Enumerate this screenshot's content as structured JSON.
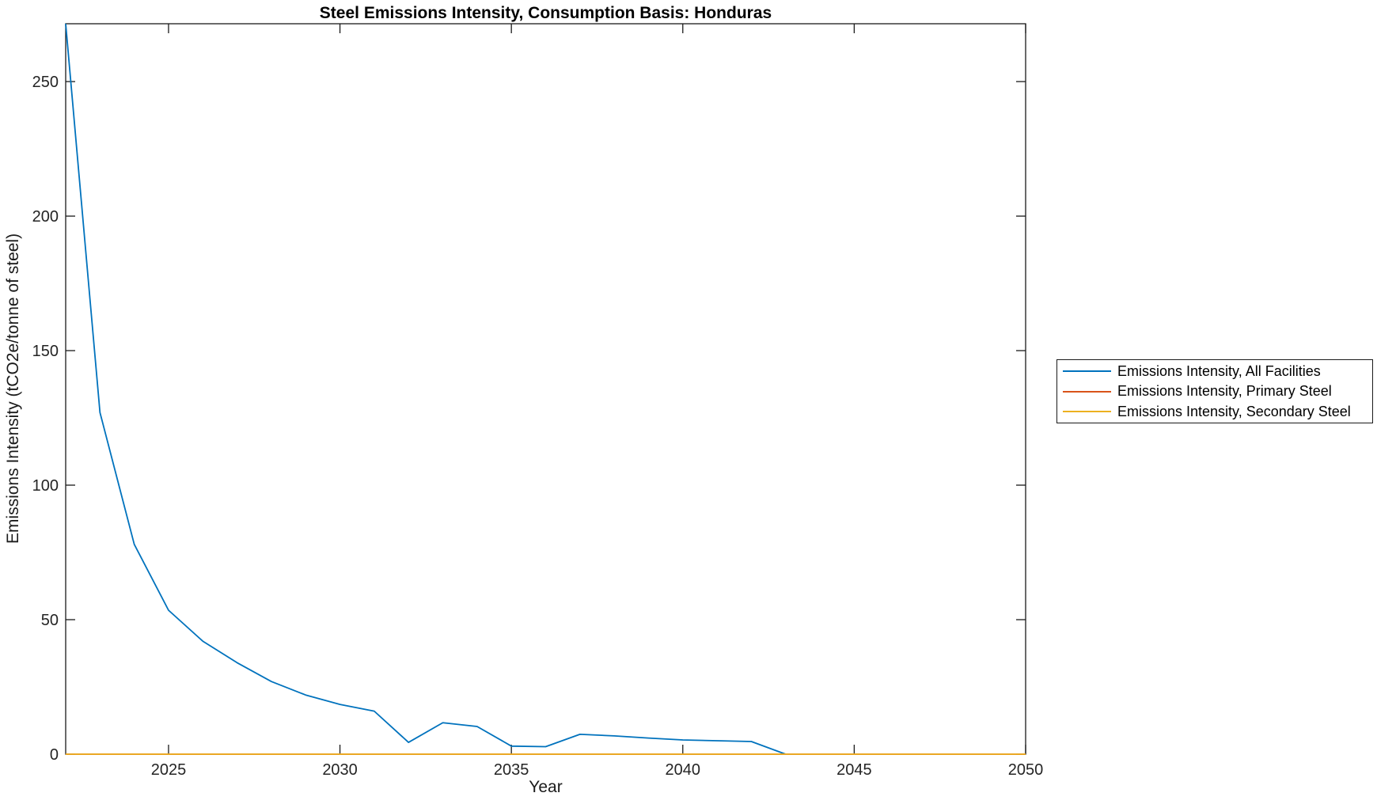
{
  "figure": {
    "title": "Steel Emissions Intensity, Consumption Basis: Honduras",
    "xlabel": "Year",
    "ylabel": "Emissions Intensity (tCO2e/tonne of steel)"
  },
  "chart_data": {
    "type": "line",
    "title": "Steel Emissions Intensity, Consumption Basis: Honduras",
    "xlabel": "Year",
    "ylabel": "Emissions Intensity (tCO2e/tonne of steel)",
    "xlim": [
      2022,
      2050
    ],
    "ylim": [
      0,
      271.5
    ],
    "x_ticks": [
      2025,
      2030,
      2035,
      2040,
      2045,
      2050
    ],
    "y_ticks": [
      0,
      50,
      100,
      150,
      200,
      250
    ],
    "grid": false,
    "box": true,
    "tick_direction": "in",
    "legend_position": "outside-right",
    "axis_color": "#1a1a1a",
    "series": [
      {
        "name": "Emissions Intensity, All Facilities",
        "color": "#0072BD",
        "x": [
          2022,
          2023,
          2024,
          2025,
          2026,
          2027,
          2028,
          2029,
          2030,
          2031,
          2032,
          2033,
          2034,
          2035,
          2036,
          2037,
          2038,
          2039,
          2040,
          2041,
          2042,
          2043
        ],
        "y": [
          271.5,
          127,
          78,
          53.5,
          42,
          34,
          27,
          22,
          18.5,
          16,
          4.4,
          11.7,
          10.3,
          3.0,
          2.8,
          7.4,
          6.8,
          6.0,
          5.3,
          5.0,
          4.7,
          0
        ]
      },
      {
        "name": "Emissions Intensity, Primary Steel",
        "color": "#D95319",
        "x": [
          2022,
          2023,
          2024,
          2025,
          2026,
          2027,
          2028,
          2029,
          2030,
          2031,
          2032,
          2033,
          2034,
          2035,
          2036,
          2037,
          2038,
          2039,
          2040,
          2041,
          2042,
          2043,
          2044,
          2045,
          2046,
          2047,
          2048,
          2049,
          2050
        ],
        "y": [
          0,
          0,
          0,
          0,
          0,
          0,
          0,
          0,
          0,
          0,
          0,
          0,
          0,
          0,
          0,
          0,
          0,
          0,
          0,
          0,
          0,
          0,
          0,
          0,
          0,
          0,
          0,
          0,
          0
        ]
      },
      {
        "name": "Emissions Intensity, Secondary Steel",
        "color": "#EDB120",
        "x": [
          2022,
          2023,
          2024,
          2025,
          2026,
          2027,
          2028,
          2029,
          2030,
          2031,
          2032,
          2033,
          2034,
          2035,
          2036,
          2037,
          2038,
          2039,
          2040,
          2041,
          2042,
          2043,
          2044,
          2045,
          2046,
          2047,
          2048,
          2049,
          2050
        ],
        "y": [
          0,
          0,
          0,
          0,
          0,
          0,
          0,
          0,
          0,
          0,
          0,
          0,
          0,
          0,
          0,
          0,
          0,
          0,
          0,
          0,
          0,
          0,
          0,
          0,
          0,
          0,
          0,
          0,
          0
        ]
      }
    ]
  }
}
